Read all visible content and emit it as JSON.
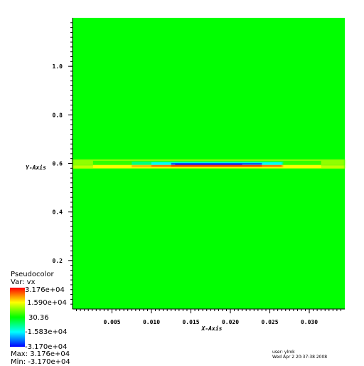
{
  "chart_data": {
    "type": "heatmap",
    "title": "",
    "xlabel": "X-Axis",
    "ylabel": "Y-Axis",
    "xlim": [
      0.0,
      0.0345
    ],
    "ylim": [
      0.0,
      1.2
    ],
    "x_ticks": [
      {
        "value": 0.005,
        "label": "0.005"
      },
      {
        "value": 0.01,
        "label": "0.010"
      },
      {
        "value": 0.015,
        "label": "0.015"
      },
      {
        "value": 0.02,
        "label": "0.020"
      },
      {
        "value": 0.025,
        "label": "0.025"
      },
      {
        "value": 0.03,
        "label": "0.030"
      }
    ],
    "y_ticks": [
      {
        "value": 0.2,
        "label": "0.2"
      },
      {
        "value": 0.4,
        "label": "0.4"
      },
      {
        "value": 0.6,
        "label": "0.6"
      },
      {
        "value": 0.8,
        "label": "0.8"
      },
      {
        "value": 1.0,
        "label": "1.0"
      }
    ],
    "background_value": 30.36,
    "feature": {
      "y_center": 0.593,
      "upper_band": [
        {
          "x0": 0.0,
          "x1": 0.0345,
          "value": 9000
        },
        {
          "x0": 0.0026,
          "x1": 0.0315,
          "value": 3000
        },
        {
          "x0": 0.0075,
          "x1": 0.0267,
          "value": -8000
        },
        {
          "x0": 0.01,
          "x1": 0.0265,
          "value": -16000
        },
        {
          "x0": 0.0125,
          "x1": 0.024,
          "value": -26000
        },
        {
          "x0": 0.013,
          "x1": 0.0215,
          "value": -31700
        }
      ],
      "lower_band": [
        {
          "x0": 0.0,
          "x1": 0.0345,
          "value": 12000
        },
        {
          "x0": 0.0026,
          "x1": 0.0315,
          "value": 16000
        },
        {
          "x0": 0.0075,
          "x1": 0.0267,
          "value": 20000
        },
        {
          "x0": 0.01,
          "x1": 0.0265,
          "value": 25000
        },
        {
          "x0": 0.0125,
          "x1": 0.024,
          "value": 28000
        }
      ]
    },
    "colorbar": {
      "min": -31700,
      "max": 31760,
      "labels": [
        {
          "value": 31760,
          "label": "3.176e+04"
        },
        {
          "value": 15900,
          "label": "1.590e+04"
        },
        {
          "value": 30.36,
          "label": "30.36"
        },
        {
          "value": -15830,
          "label": "-1.583e+04"
        },
        {
          "value": -31700,
          "label": "-3.170e+04"
        }
      ],
      "colors": [
        "#0000ff",
        "#00ffff",
        "#00ff00",
        "#ffff00",
        "#ff0000"
      ]
    }
  },
  "legend": {
    "title": "Pseudocolor",
    "var": "Var: vx",
    "max_text": "Max:  3.176e+04",
    "min_text": "Min: -3.170e+04"
  },
  "footer": {
    "user": "user: ylrok",
    "date": "Wed Apr  2 20:37:38 2008"
  }
}
